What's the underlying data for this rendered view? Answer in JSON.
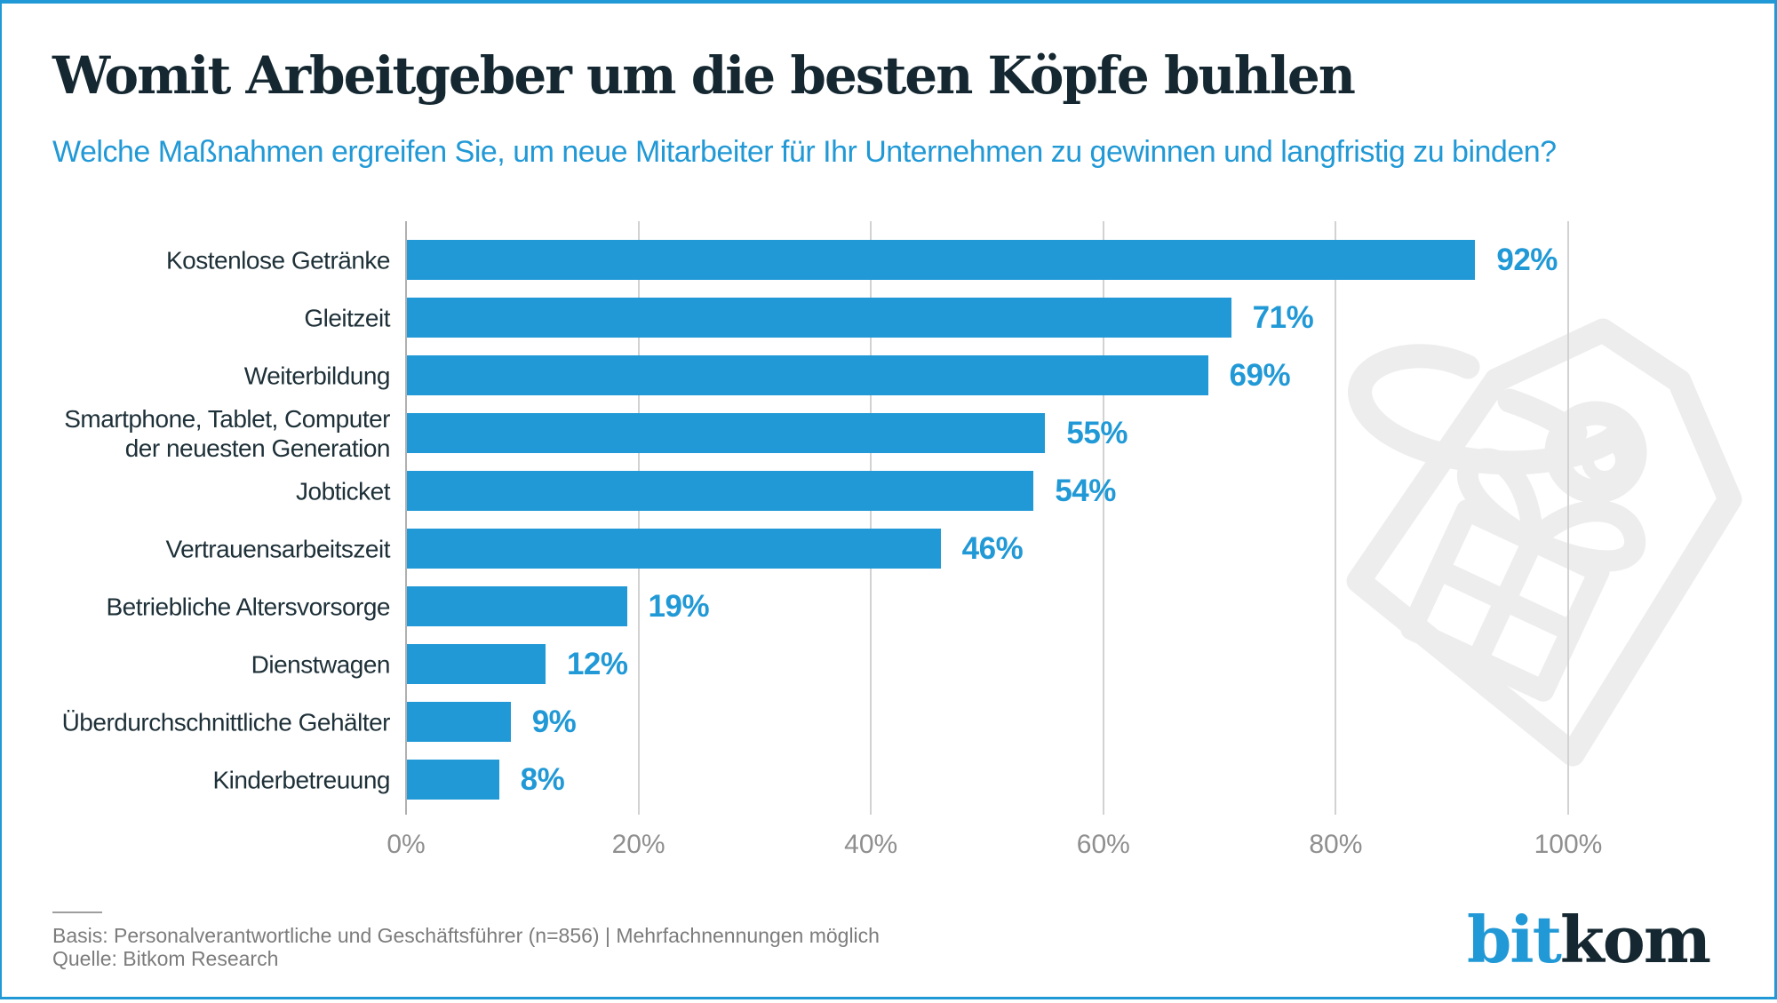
{
  "header": {
    "title": "Womit Arbeitgeber um die besten Köpfe buhlen",
    "subtitle": "Welche Maßnahmen ergreifen Sie, um neue Mitarbeiter für Ihr Unternehmen zu gewinnen und langfristig zu binden?"
  },
  "chart_data": {
    "type": "bar",
    "orientation": "horizontal",
    "categories": [
      "Kostenlose Getränke",
      "Gleitzeit",
      "Weiterbildung",
      "Smartphone, Tablet, Computer\nder neuesten Generation",
      "Jobticket",
      "Vertrauensarbeitszeit",
      "Betriebliche Altersvorsorge",
      "Dienstwagen",
      "Überdurchschnittliche Gehälter",
      "Kinderbetreuung"
    ],
    "values": [
      92,
      71,
      69,
      55,
      54,
      46,
      19,
      12,
      9,
      8
    ],
    "value_labels": [
      "92%",
      "71%",
      "69%",
      "55%",
      "54%",
      "46%",
      "19%",
      "12%",
      "9%",
      "8%"
    ],
    "value_suffix": "%",
    "xlim": [
      0,
      100
    ],
    "xticks": [
      0,
      20,
      40,
      60,
      80,
      100
    ],
    "xtick_labels": [
      "0%",
      "20%",
      "40%",
      "60%",
      "80%",
      "100%"
    ],
    "grid": "vertical-on",
    "legend": "none"
  },
  "footer": {
    "basis": "Basis: Personalverantwortliche und Geschäftsführer (n=856) | Mehrfachnennungen möglich",
    "quelle": "Quelle: Bitkom Research"
  },
  "logo": {
    "part1": "bit",
    "part2": "kom"
  },
  "watermark_icon": "gift-tag-icon",
  "colors": {
    "accent": "#2199D6",
    "title": "#152831",
    "label": "#1E3038",
    "grid": "#D2D2D2",
    "axis": "#B0B0B0",
    "tick": "#8F8F8F",
    "footer": "#7C7C7C",
    "watermark": "#EDEDED"
  }
}
